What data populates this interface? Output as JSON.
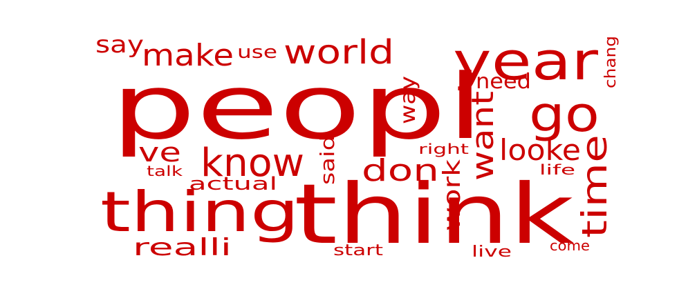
{
  "word_cloud": {
    "color": "#cc0000",
    "background": "#ffffff",
    "words": [
      {
        "text": "peopl"
      },
      {
        "text": "think"
      },
      {
        "text": "thing"
      },
      {
        "text": "year"
      },
      {
        "text": "go"
      },
      {
        "text": "world"
      },
      {
        "text": "make"
      },
      {
        "text": "say"
      },
      {
        "text": "use"
      },
      {
        "text": "know"
      },
      {
        "text": "ve"
      },
      {
        "text": "way"
      },
      {
        "text": "need"
      },
      {
        "text": "chang"
      },
      {
        "text": "want"
      },
      {
        "text": "looke"
      },
      {
        "text": "time"
      },
      {
        "text": "don"
      },
      {
        "text": "work"
      },
      {
        "text": "said"
      },
      {
        "text": "right"
      },
      {
        "text": "life"
      },
      {
        "text": "talk"
      },
      {
        "text": "actual"
      },
      {
        "text": "realli"
      },
      {
        "text": "start"
      },
      {
        "text": "live"
      },
      {
        "text": "come"
      }
    ]
  }
}
